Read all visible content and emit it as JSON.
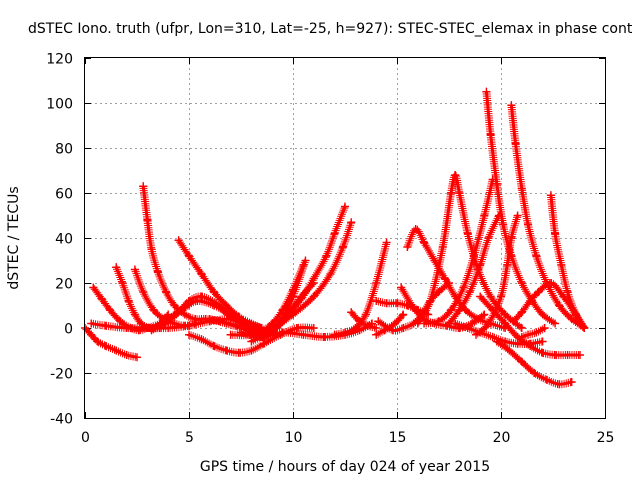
{
  "chart_data": {
    "type": "scatter",
    "title": "dSTEC Iono. truth (ufpr, Lon=310, Lat=-25, h=927): STEC-STEC_elemax in phase cont",
    "xlabel": "GPS time / hours of day 024 of year 2015",
    "ylabel": "dSTEC  / TECUs",
    "xlim": [
      0,
      25
    ],
    "ylim": [
      -40,
      120
    ],
    "xticks": [
      0,
      5,
      10,
      15,
      20,
      25
    ],
    "yticks": [
      -40,
      -20,
      0,
      20,
      40,
      60,
      80,
      100,
      120
    ],
    "grid": true,
    "marker": "+",
    "color": "#ff0000",
    "series": [
      {
        "x": [
          0.0,
          0.3,
          0.6,
          1.0,
          1.5,
          2.0,
          2.5
        ],
        "y": [
          0,
          -3,
          -6,
          -8,
          -10,
          -12,
          -13
        ]
      },
      {
        "x": [
          0.4,
          0.8,
          1.2,
          1.7,
          2.2,
          2.6,
          3.0,
          3.6,
          4.0
        ],
        "y": [
          18,
          13,
          8,
          3,
          0,
          -1,
          0,
          2,
          6
        ]
      },
      {
        "x": [
          1.5,
          1.8,
          2.1,
          2.4,
          2.7,
          3.1,
          3.6
        ],
        "y": [
          27,
          20,
          12,
          6,
          2,
          0,
          0
        ]
      },
      {
        "x": [
          2.4,
          2.8,
          3.3,
          3.8,
          4.3,
          4.8,
          5.3
        ],
        "y": [
          26,
          16,
          8,
          4,
          2,
          1,
          2
        ]
      },
      {
        "x": [
          2.8,
          3.0,
          3.2,
          3.5,
          3.9,
          4.3,
          4.8,
          5.3,
          5.8,
          6.5
        ],
        "y": [
          63,
          48,
          35,
          25,
          16,
          10,
          6,
          4,
          4,
          3
        ]
      },
      {
        "x": [
          4.5,
          5.0,
          5.6,
          6.2,
          6.8,
          7.4,
          8.0,
          8.5
        ],
        "y": [
          39,
          32,
          24,
          16,
          10,
          5,
          2,
          0
        ]
      },
      {
        "x": [
          3.2,
          3.8,
          4.3,
          4.8,
          5.4,
          6.2,
          7.0,
          7.8,
          8.4
        ],
        "y": [
          -1,
          2,
          6,
          9,
          12,
          10,
          6,
          2,
          -1
        ]
      },
      {
        "x": [
          3.8,
          4.4,
          5.0,
          5.6,
          6.3,
          7.0,
          7.7,
          8.4
        ],
        "y": [
          2,
          6,
          12,
          14,
          11,
          6,
          2,
          -1
        ]
      },
      {
        "x": [
          0.3,
          1.0,
          2.0,
          3.0,
          4.0,
          5.0,
          6.0,
          7.0,
          7.8,
          8.5
        ],
        "y": [
          2,
          1,
          0,
          0,
          0,
          1,
          3,
          4,
          2,
          0
        ]
      },
      {
        "x": [
          5.0,
          5.6,
          6.2,
          6.8,
          7.4,
          8.0,
          8.6,
          9.4,
          10.2,
          11.0
        ],
        "y": [
          -3,
          -5,
          -8,
          -10,
          -11,
          -10,
          -7,
          -3,
          0,
          0
        ]
      },
      {
        "x": [
          6.5,
          7.0,
          7.5,
          8.0,
          8.5,
          9.0,
          9.5,
          10.0,
          10.5
        ],
        "y": [
          9,
          5,
          2,
          0,
          -1,
          2,
          8,
          17,
          28
        ]
      },
      {
        "x": [
          6.0,
          6.8,
          7.5,
          8.2,
          8.8,
          9.4,
          10.0,
          10.6
        ],
        "y": [
          4,
          2,
          0,
          -2,
          -3,
          3,
          14,
          30
        ]
      },
      {
        "x": [
          6.5,
          7.3,
          8.0,
          8.6,
          9.2,
          9.8,
          10.4,
          11.0
        ],
        "y": [
          3,
          1,
          -2,
          -4,
          0,
          6,
          14,
          20
        ]
      },
      {
        "x": [
          8.0,
          8.8,
          9.6,
          10.4,
          11.0,
          11.6,
          12.0,
          12.5
        ],
        "y": [
          -6,
          -2,
          5,
          13,
          22,
          32,
          42,
          54
        ]
      },
      {
        "x": [
          7.0,
          8.0,
          9.0,
          10.0,
          11.0,
          11.8,
          12.4,
          12.8
        ],
        "y": [
          -3,
          -3,
          0,
          6,
          14,
          24,
          36,
          47
        ]
      },
      {
        "x": [
          7.5,
          8.5,
          9.5,
          10.5,
          11.5,
          12.5,
          13.2,
          13.8
        ],
        "y": [
          -2,
          -4,
          -2,
          -3,
          -4,
          -3,
          -1,
          2
        ]
      },
      {
        "x": [
          12.0,
          12.5,
          13.0,
          13.5,
          14.0,
          14.5
        ],
        "y": [
          -3,
          -2,
          0,
          6,
          20,
          38
        ]
      },
      {
        "x": [
          12.8,
          13.2,
          13.6,
          14.0
        ],
        "y": [
          7,
          3,
          1,
          0
        ]
      },
      {
        "x": [
          14.0,
          14.4,
          14.9,
          15.3
        ],
        "y": [
          -3,
          -1,
          2,
          6
        ]
      },
      {
        "x": [
          14.0,
          14.5,
          15.0,
          15.5,
          16.0,
          16.5
        ],
        "y": [
          12,
          11,
          11,
          10,
          8,
          6
        ]
      },
      {
        "x": [
          14.1,
          14.8,
          15.3,
          15.8,
          16.2,
          16.6,
          17.0,
          17.5
        ],
        "y": [
          3,
          -1,
          0,
          2,
          6,
          12,
          16,
          20
        ]
      },
      {
        "x": [
          15.2,
          15.8,
          16.3,
          16.8,
          17.4,
          18.0,
          18.6,
          19.2
        ],
        "y": [
          18,
          9,
          4,
          2,
          1,
          0,
          2,
          6
        ]
      },
      {
        "x": [
          15.5,
          15.9,
          16.3,
          16.8,
          17.3,
          17.8,
          18.3,
          18.9,
          19.5,
          20.2
        ],
        "y": [
          36,
          44,
          38,
          30,
          22,
          14,
          8,
          4,
          2,
          0
        ]
      },
      {
        "x": [
          16.0,
          16.6,
          17.2,
          17.6,
          17.8,
          18.0,
          18.4,
          18.9,
          19.5,
          20.2,
          21.0
        ],
        "y": [
          2,
          12,
          36,
          60,
          68,
          60,
          42,
          26,
          14,
          6,
          0
        ]
      },
      {
        "x": [
          16.3,
          17.0,
          17.6,
          18.2,
          18.7,
          19.2,
          19.6
        ],
        "y": [
          2,
          3,
          8,
          18,
          32,
          50,
          66
        ]
      },
      {
        "x": [
          17.5,
          18.0,
          18.5,
          19.0,
          19.4,
          19.9
        ],
        "y": [
          2,
          8,
          16,
          28,
          40,
          50
        ]
      },
      {
        "x": [
          19.3,
          19.5,
          19.8,
          20.1,
          20.5,
          21.0,
          21.5,
          22.0,
          22.6
        ],
        "y": [
          105,
          86,
          64,
          46,
          32,
          20,
          12,
          6,
          2
        ]
      },
      {
        "x": [
          19.0,
          19.6,
          20.2,
          20.8,
          21.4,
          22.0,
          22.6,
          23.2,
          23.8
        ],
        "y": [
          14,
          8,
          2,
          -4,
          -8,
          -11,
          -12,
          -12,
          -12
        ]
      },
      {
        "x": [
          17.8,
          18.4,
          19.0,
          19.6,
          20.2,
          20.8,
          21.4,
          22.0
        ],
        "y": [
          2,
          0,
          -2,
          -4,
          -6,
          -7,
          -7,
          -6
        ]
      },
      {
        "x": [
          20.5,
          20.7,
          21.0,
          21.3,
          21.7,
          22.2,
          22.8,
          23.4,
          24.0
        ],
        "y": [
          99,
          82,
          62,
          46,
          32,
          20,
          10,
          4,
          0
        ]
      },
      {
        "x": [
          18.8,
          19.4,
          20.0,
          20.3,
          20.5,
          20.8
        ],
        "y": [
          -3,
          2,
          14,
          28,
          40,
          50
        ]
      },
      {
        "x": [
          19.8,
          20.4,
          21.0,
          21.6,
          22.2,
          22.8,
          23.4
        ],
        "y": [
          -6,
          -10,
          -15,
          -20,
          -23,
          -25,
          -24
        ]
      },
      {
        "x": [
          20.6,
          21.0,
          21.4,
          21.8,
          22.4,
          23.0,
          23.6,
          24.0
        ],
        "y": [
          3,
          7,
          12,
          16,
          20,
          14,
          6,
          0
        ]
      },
      {
        "x": [
          21.0,
          21.3,
          21.7,
          22.1
        ],
        "y": [
          -4,
          -3,
          -2,
          0
        ]
      },
      {
        "x": [
          22.4,
          22.6,
          22.9,
          23.2,
          23.6,
          24.0
        ],
        "y": [
          59,
          42,
          28,
          16,
          6,
          0
        ]
      }
    ]
  }
}
